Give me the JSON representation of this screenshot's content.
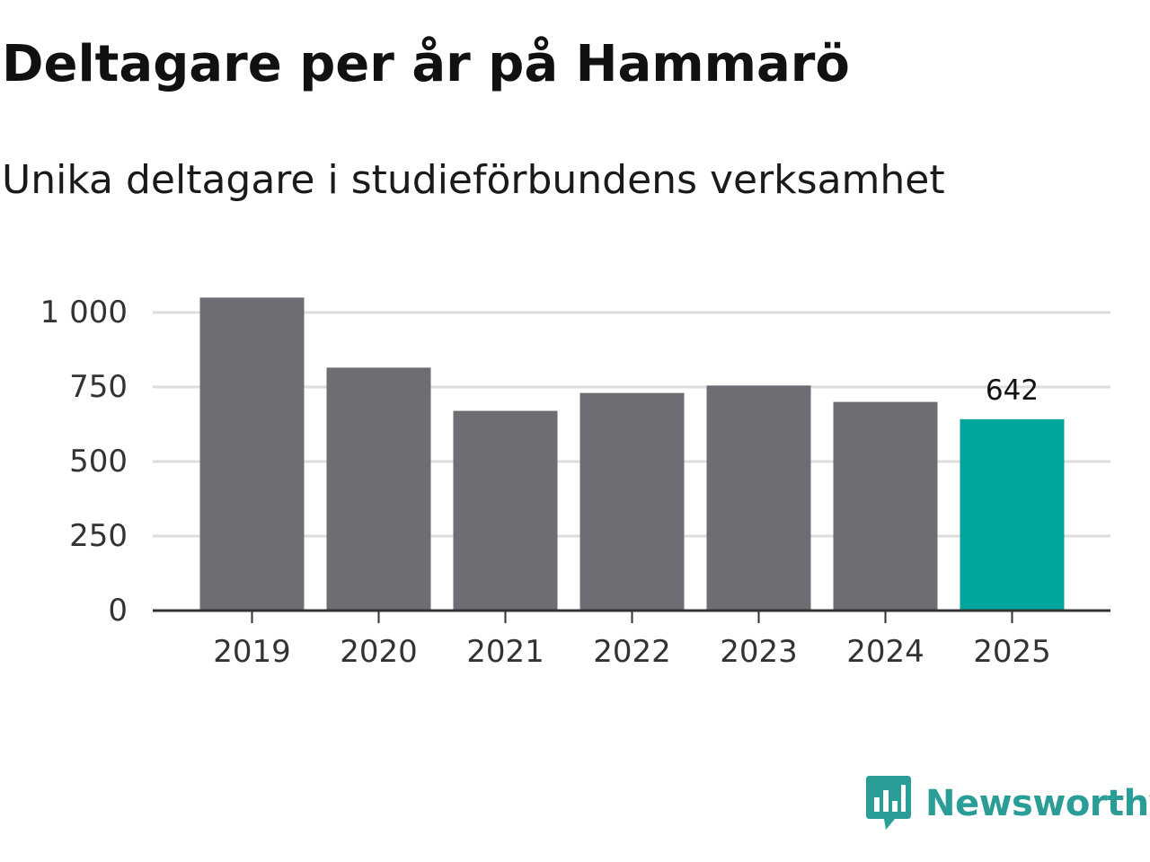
{
  "title": "Deltagare per år på Hammarö",
  "subtitle": "Unika deltagare i studieförbundens verksamhet",
  "chart_data": {
    "type": "bar",
    "title": "Deltagare per år på Hammarö",
    "subtitle": "Unika deltagare i studieförbundens verksamhet",
    "xlabel": "",
    "ylabel": "",
    "categories": [
      "2019",
      "2020",
      "2021",
      "2022",
      "2023",
      "2024",
      "2025"
    ],
    "values": [
      1050,
      815,
      670,
      730,
      755,
      700,
      642
    ],
    "ylim": [
      0,
      1000
    ],
    "yticks": [
      0,
      250,
      500,
      750,
      1000
    ],
    "ytick_labels": [
      "0",
      "250",
      "500",
      "750",
      "1 000"
    ],
    "grid": true,
    "data_labels": [
      {
        "category": "2025",
        "text": "642"
      }
    ],
    "colors": {
      "default_bar": "#6e6d73",
      "highlight_bar": "#00a59b",
      "gridline": "#dddddd",
      "axis": "#333333"
    },
    "highlight_category": "2025"
  },
  "brand": {
    "name": "Newsworthy",
    "icon": "newsworthy-logo-icon",
    "color": "#2a9d97"
  }
}
